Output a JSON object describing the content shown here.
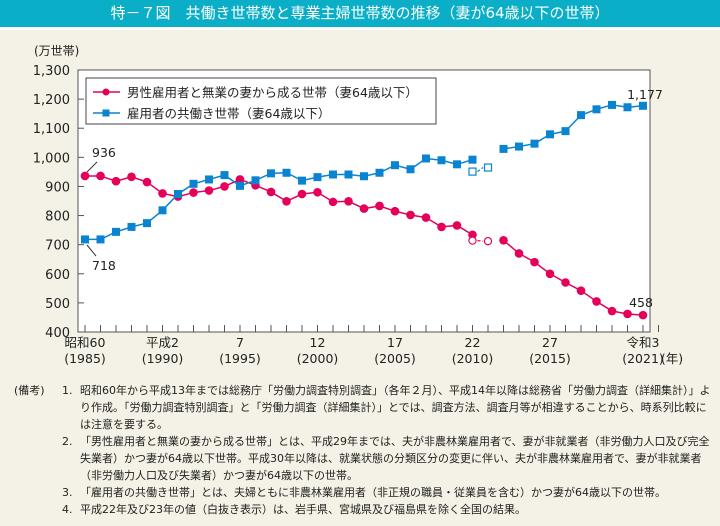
{
  "title": "特－７図　共働き世帯数と専業主婦世帯数の推移（妻が64歳以下の世帯）",
  "chart_data": {
    "type": "line",
    "title": "特－７図　共働き世帯数と専業主婦世帯数の推移（妻が64歳以下の世帯）",
    "ylabel": "(万世帯)",
    "xlabel_unit": "(年)",
    "ylim": [
      400,
      1300
    ],
    "yticks": [
      "400",
      "500",
      "600",
      "700",
      "800",
      "900",
      "1,000",
      "1,100",
      "1,200",
      "1,300"
    ],
    "ytick_values": [
      400,
      500,
      600,
      700,
      800,
      900,
      1000,
      1100,
      1200,
      1300
    ],
    "x": [
      1985,
      1986,
      1987,
      1988,
      1989,
      1990,
      1991,
      1992,
      1993,
      1994,
      1995,
      1996,
      1997,
      1998,
      1999,
      2000,
      2001,
      2002,
      2003,
      2004,
      2005,
      2006,
      2007,
      2008,
      2009,
      2010,
      2011,
      2012,
      2013,
      2014,
      2015,
      2016,
      2017,
      2018,
      2019,
      2020,
      2021
    ],
    "xtick_labels": [
      {
        "year": 1985,
        "line1": "昭和60",
        "line2": "(1985)"
      },
      {
        "year": 1990,
        "line1": "平成2",
        "line2": "(1990)"
      },
      {
        "year": 1995,
        "line1": "7",
        "line2": "(1995)"
      },
      {
        "year": 2000,
        "line1": "12",
        "line2": "(2000)"
      },
      {
        "year": 2005,
        "line1": "17",
        "line2": "(2005)"
      },
      {
        "year": 2010,
        "line1": "22",
        "line2": "(2010)"
      },
      {
        "year": 2015,
        "line1": "27",
        "line2": "(2015)"
      },
      {
        "year": 2021,
        "line1": "令和3",
        "line2": "(2021)"
      }
    ],
    "legend_placement": "top-left",
    "grid": false,
    "series": [
      {
        "name": "男性雇用者と無業の妻から成る世帯（妻64歳以下）",
        "color": "#e5005a",
        "marker": "circle",
        "values": [
          936,
          936,
          918,
          933,
          915,
          876,
          865,
          879,
          886,
          900,
          924,
          904,
          881,
          849,
          874,
          880,
          847,
          849,
          824,
          833,
          815,
          802,
          793,
          761,
          766,
          734,
          null,
          715,
          670,
          640,
          600,
          570,
          542,
          505,
          472,
          462,
          458
        ],
        "hollow": {
          "2010": 714,
          "2011": 712
        },
        "labels": {
          "1985": "936",
          "2021": "458"
        }
      },
      {
        "name": "雇用者の共働き世帯（妻64歳以下）",
        "color": "#0a84d0",
        "marker": "square",
        "values": [
          718,
          718,
          744,
          761,
          774,
          818,
          874,
          909,
          924,
          939,
          902,
          921,
          945,
          947,
          920,
          932,
          941,
          941,
          935,
          947,
          973,
          959,
          996,
          990,
          976,
          992,
          null,
          1029,
          1037,
          1047,
          1079,
          1090,
          1145,
          1165,
          1180,
          1172,
          1177
        ],
        "hollow": {
          "2010": 951,
          "2011": 965
        },
        "labels": {
          "1985": "718",
          "2021": "1,177"
        }
      }
    ]
  },
  "notes": {
    "head": "(備考)",
    "items": [
      {
        "num": "1.",
        "text": "昭和60年から平成13年までは総務庁「労働力調査特別調査」（各年２月）、平成14年以降は総務省「労働力調査（詳細集計）」より作成。「労働力調査特別調査」と「労働力調査（詳細集計）」とでは、調査方法、調査月等が相違することから、時系列比較には注意を要する。"
      },
      {
        "num": "2.",
        "text": "「男性雇用者と無業の妻から成る世帯」とは、平成29年までは、夫が非農林業雇用者で、妻が非就業者（非労働力人口及び完全失業者）かつ妻が64歳以下世帯。平成30年以降は、就業状態の分類区分の変更に伴い、夫が非農林業雇用者で、妻が非就業者（非労働力人口及び失業者）かつ妻が64歳以下の世帯。"
      },
      {
        "num": "3.",
        "text": "「雇用者の共働き世帯」とは、夫婦ともに非農林業雇用者（非正規の職員・従業員を含む）かつ妻が64歳以下の世帯。"
      },
      {
        "num": "4.",
        "text": "平成22年及び23年の値（白抜き表示）は、岩手県、宮城県及び福島県を除く全国の結果。"
      }
    ]
  }
}
